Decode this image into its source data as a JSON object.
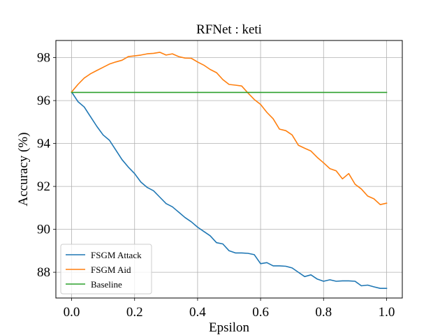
{
  "chart_data": {
    "type": "line",
    "title": "RFNet : keti",
    "xlabel": "Epsilon",
    "ylabel": "Accuracy (%)",
    "xlim": [
      -0.05,
      1.05
    ],
    "ylim": [
      86.8,
      98.8
    ],
    "xticks": [
      0.0,
      0.2,
      0.4,
      0.6,
      0.8,
      1.0
    ],
    "xtick_labels": [
      "0.0",
      "0.2",
      "0.4",
      "0.6",
      "0.8",
      "1.0"
    ],
    "yticks": [
      88,
      90,
      92,
      94,
      96,
      98
    ],
    "ytick_labels": [
      "88",
      "90",
      "92",
      "94",
      "96",
      "98"
    ],
    "grid": true,
    "legend_position": "lower-left",
    "x": [
      0.0,
      0.02,
      0.04,
      0.06,
      0.08,
      0.1,
      0.12,
      0.14,
      0.16,
      0.18,
      0.2,
      0.22,
      0.24,
      0.26,
      0.28,
      0.3,
      0.32,
      0.34,
      0.36,
      0.38,
      0.4,
      0.42,
      0.44,
      0.46,
      0.48,
      0.5,
      0.52,
      0.54,
      0.56,
      0.58,
      0.6,
      0.62,
      0.64,
      0.66,
      0.68,
      0.7,
      0.72,
      0.74,
      0.76,
      0.78,
      0.8,
      0.82,
      0.84,
      0.86,
      0.88,
      0.9,
      0.92,
      0.94,
      0.96,
      0.98,
      1.0
    ],
    "series": [
      {
        "name": "FSGM Attack",
        "color": "#1f77b4",
        "values": [
          96.4,
          95.95,
          95.7,
          95.25,
          94.8,
          94.4,
          94.15,
          93.7,
          93.25,
          92.9,
          92.6,
          92.2,
          91.95,
          91.8,
          91.5,
          91.2,
          91.05,
          90.8,
          90.55,
          90.35,
          90.1,
          89.9,
          89.7,
          89.38,
          89.32,
          89.0,
          88.9,
          88.9,
          88.88,
          88.82,
          88.4,
          88.45,
          88.3,
          88.3,
          88.28,
          88.2,
          88.0,
          87.8,
          87.88,
          87.68,
          87.58,
          87.65,
          87.58,
          87.6,
          87.6,
          87.58,
          87.37,
          87.4,
          87.32,
          87.25,
          87.25
        ]
      },
      {
        "name": "FSGM Aid",
        "color": "#ff7f0e",
        "values": [
          96.4,
          96.75,
          97.05,
          97.25,
          97.4,
          97.55,
          97.7,
          97.8,
          97.88,
          98.05,
          98.08,
          98.12,
          98.18,
          98.2,
          98.25,
          98.12,
          98.18,
          98.05,
          97.98,
          97.97,
          97.8,
          97.65,
          97.45,
          97.3,
          96.98,
          96.75,
          96.72,
          96.68,
          96.35,
          96.05,
          95.82,
          95.45,
          95.15,
          94.67,
          94.6,
          94.4,
          93.92,
          93.78,
          93.65,
          93.35,
          93.1,
          92.83,
          92.73,
          92.35,
          92.6,
          92.1,
          91.88,
          91.55,
          91.42,
          91.15,
          91.22
        ]
      },
      {
        "name": "Baseline",
        "color": "#2ca02c",
        "values": [
          96.38,
          96.38,
          96.38,
          96.38,
          96.38,
          96.38,
          96.38,
          96.38,
          96.38,
          96.38,
          96.38,
          96.38,
          96.38,
          96.38,
          96.38,
          96.38,
          96.38,
          96.38,
          96.38,
          96.38,
          96.38,
          96.38,
          96.38,
          96.38,
          96.38,
          96.38,
          96.38,
          96.38,
          96.38,
          96.38,
          96.38,
          96.38,
          96.38,
          96.38,
          96.38,
          96.38,
          96.38,
          96.38,
          96.38,
          96.38,
          96.38,
          96.38,
          96.38,
          96.38,
          96.38,
          96.38,
          96.38,
          96.38,
          96.38,
          96.38,
          96.38
        ]
      }
    ]
  }
}
